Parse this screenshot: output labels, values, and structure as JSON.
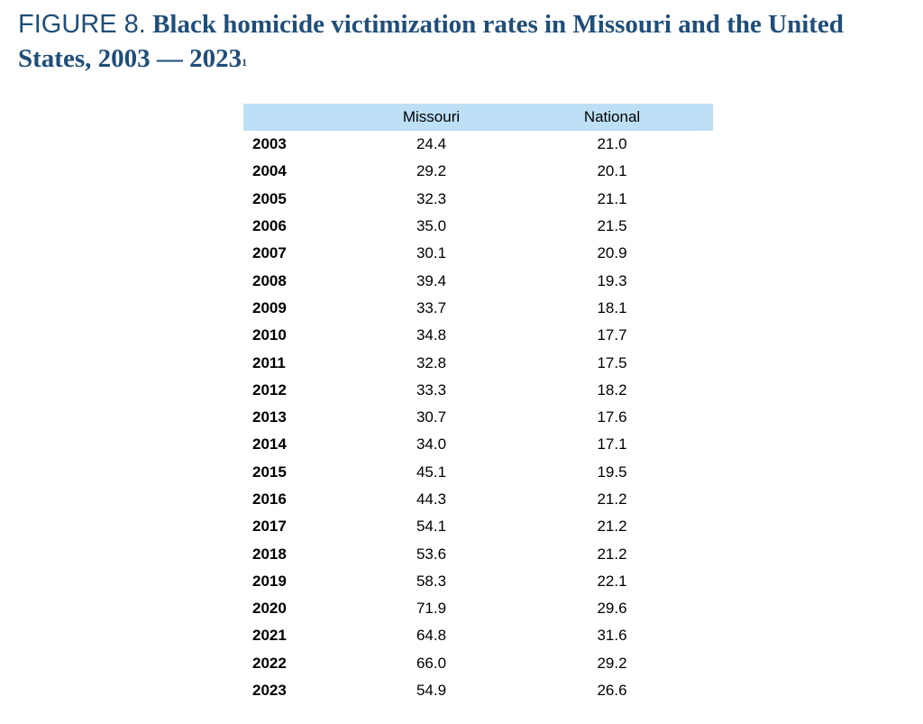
{
  "title": {
    "label": "FIGURE 8.",
    "text": "Black homicide victimization rates in Missouri and the United States, 2003 — 2023",
    "footnote": "1"
  },
  "table": {
    "headers": [
      "",
      "Missouri",
      "National"
    ],
    "rows": [
      {
        "year": "2003",
        "missouri": "24.4",
        "national": "21.0"
      },
      {
        "year": "2004",
        "missouri": "29.2",
        "national": "20.1"
      },
      {
        "year": "2005",
        "missouri": "32.3",
        "national": "21.1"
      },
      {
        "year": "2006",
        "missouri": "35.0",
        "national": "21.5"
      },
      {
        "year": "2007",
        "missouri": "30.1",
        "national": "20.9"
      },
      {
        "year": "2008",
        "missouri": "39.4",
        "national": "19.3"
      },
      {
        "year": "2009",
        "missouri": "33.7",
        "national": "18.1"
      },
      {
        "year": "2010",
        "missouri": "34.8",
        "national": "17.7"
      },
      {
        "year": "2011",
        "missouri": "32.8",
        "national": "17.5"
      },
      {
        "year": "2012",
        "missouri": "33.3",
        "national": "18.2"
      },
      {
        "year": "2013",
        "missouri": "30.7",
        "national": "17.6"
      },
      {
        "year": "2014",
        "missouri": "34.0",
        "national": "17.1"
      },
      {
        "year": "2015",
        "missouri": "45.1",
        "national": "19.5"
      },
      {
        "year": "2016",
        "missouri": "44.3",
        "national": "21.2"
      },
      {
        "year": "2017",
        "missouri": "54.1",
        "national": "21.2"
      },
      {
        "year": "2018",
        "missouri": "53.6",
        "national": "21.2"
      },
      {
        "year": "2019",
        "missouri": "58.3",
        "national": "22.1"
      },
      {
        "year": "2020",
        "missouri": "71.9",
        "national": "29.6"
      },
      {
        "year": "2021",
        "missouri": "64.8",
        "national": "31.6"
      },
      {
        "year": "2022",
        "missouri": "66.0",
        "national": "29.2"
      },
      {
        "year": "2023",
        "missouri": "54.9",
        "national": "26.6"
      }
    ]
  },
  "colors": {
    "title": "#1f4e79",
    "header_background": "#bde0f6"
  }
}
